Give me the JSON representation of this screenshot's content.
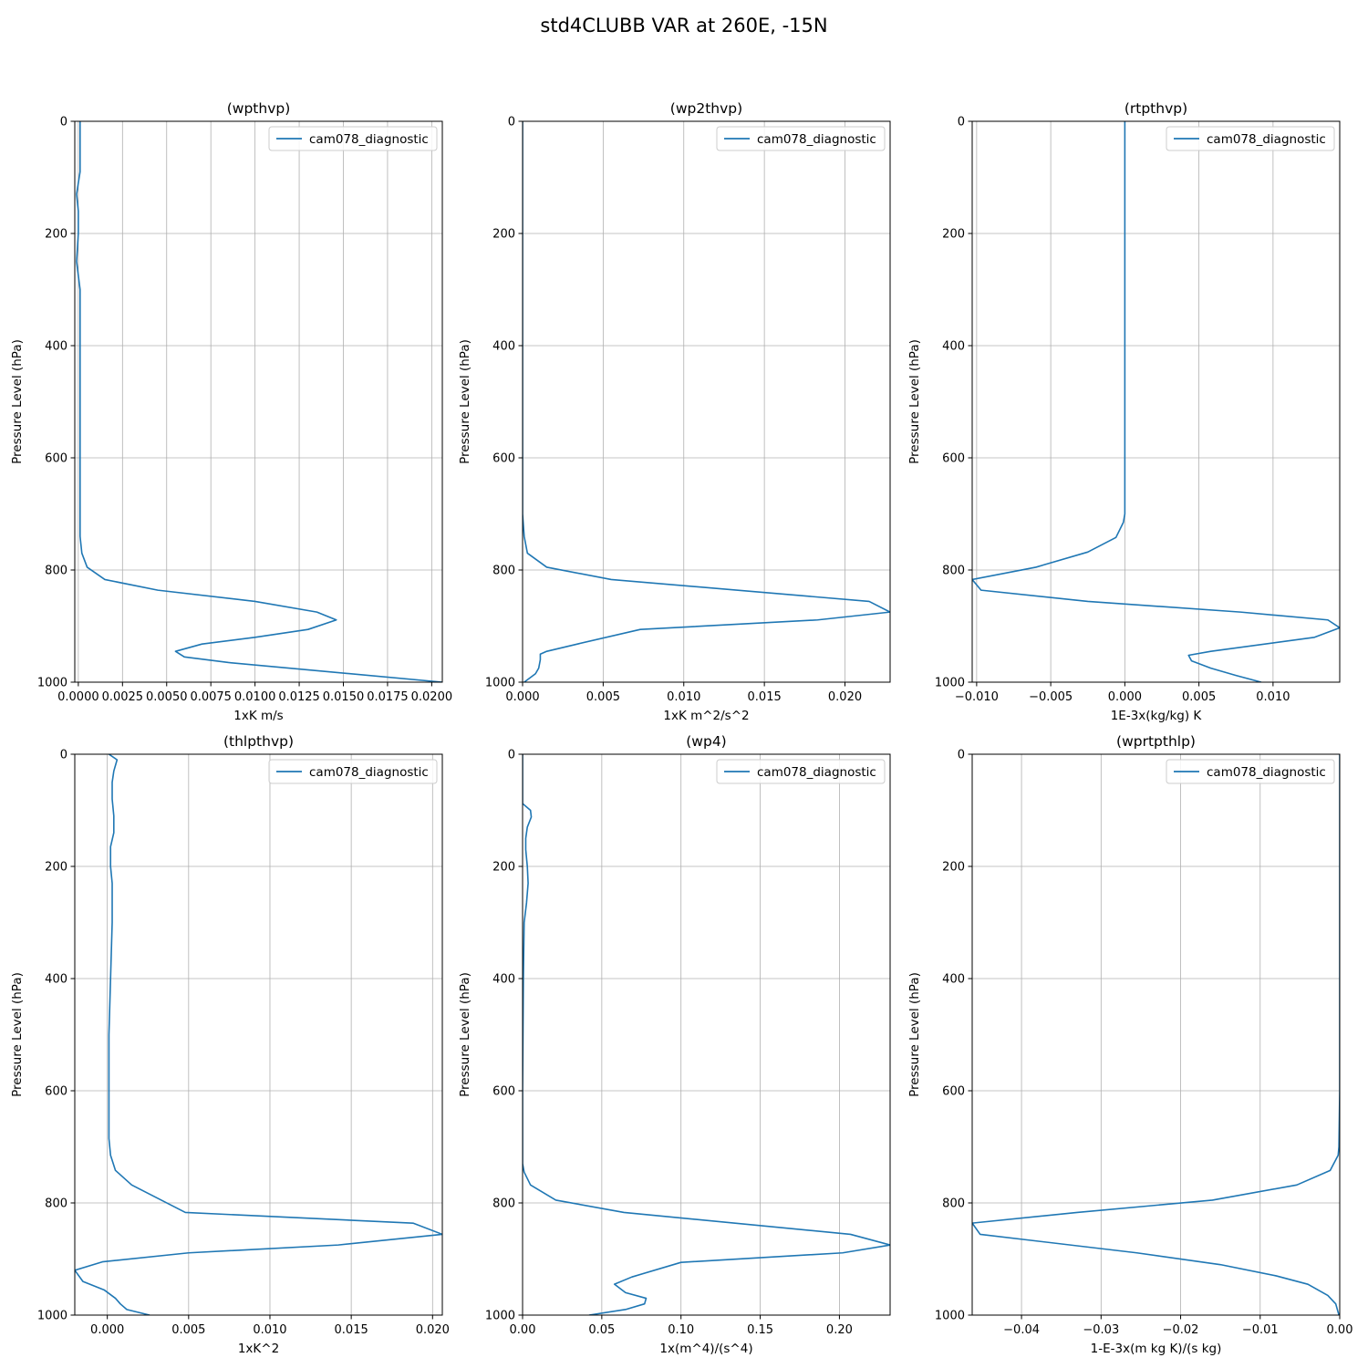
{
  "figure": {
    "title": "std4CLUBB VAR at 260E, -15N"
  },
  "colors": {
    "series": "#1f77b4",
    "grid": "#b0b0b0",
    "axis": "#000000"
  },
  "chart_data": [
    {
      "type": "line",
      "title": "(wpthvp)",
      "xlabel": "1xK m/s",
      "ylabel": "Pressure Level (hPa)",
      "xlim": [
        -0.0002,
        0.0206
      ],
      "ylim": [
        1000,
        0
      ],
      "xticks": [
        0,
        0.0025,
        0.005,
        0.0075,
        0.01,
        0.0125,
        0.015,
        0.0175,
        0.02
      ],
      "xtick_labels": [
        "0.0000",
        "0.0025",
        "0.0050",
        "0.0075",
        "0.0100",
        "0.0125",
        "0.0150",
        "0.0175",
        "0.0200"
      ],
      "yticks": [
        0,
        200,
        400,
        600,
        800,
        1000
      ],
      "ytick_labels": [
        "0",
        "200",
        "400",
        "600",
        "800",
        "1000"
      ],
      "legend": "top-right",
      "series": [
        {
          "name": "cam078_diagnostic",
          "x": [
            0.0001,
            0.0001,
            0.0001,
            -0.0001,
            0.0,
            0.0,
            -0.0001,
            0.0001,
            0.0001,
            0.0001,
            0.0001,
            0.0001,
            0.0001,
            0.0002,
            0.0005,
            0.0015,
            0.0045,
            0.01,
            0.0135,
            0.0146,
            0.013,
            0.01,
            0.007,
            0.0055,
            0.006,
            0.0085,
            0.0206
          ],
          "y": [
            0,
            50,
            90,
            130,
            160,
            200,
            250,
            300,
            400,
            500,
            600,
            700,
            740,
            770,
            795,
            817,
            836,
            856,
            875,
            889,
            906,
            920,
            932,
            945,
            955,
            965,
            1000
          ]
        }
      ]
    },
    {
      "type": "line",
      "title": "(wp2thvp)",
      "xlabel": "1xK m^2/s^2",
      "ylabel": "Pressure Level (hPa)",
      "xlim": [
        0,
        0.0228
      ],
      "ylim": [
        1000,
        0
      ],
      "xticks": [
        0,
        0.005,
        0.01,
        0.015,
        0.02
      ],
      "xtick_labels": [
        "0.000",
        "0.005",
        "0.010",
        "0.015",
        "0.020"
      ],
      "yticks": [
        0,
        200,
        400,
        600,
        800,
        1000
      ],
      "ytick_labels": [
        "0",
        "200",
        "400",
        "600",
        "800",
        "1000"
      ],
      "legend": "top-right",
      "series": [
        {
          "name": "cam078_diagnostic",
          "x": [
            0.0,
            0.0,
            0.0,
            0.0,
            0.0,
            0.0001,
            0.0003,
            0.0015,
            0.0055,
            0.0215,
            0.0228,
            0.0183,
            0.0073,
            0.0034,
            0.0015,
            0.0011,
            0.0011,
            0.001,
            0.0008,
            0.0001
          ],
          "y": [
            0,
            200,
            400,
            600,
            700,
            740,
            770,
            795,
            817,
            856,
            875,
            889,
            906,
            932,
            945,
            950,
            960,
            975,
            985,
            1000
          ]
        }
      ]
    },
    {
      "type": "line",
      "title": "(rtpthvp)",
      "xlabel": "1E-3x(kg/kg) K",
      "ylabel": "Pressure Level (hPa)",
      "xlim": [
        -0.0103,
        0.0145
      ],
      "ylim": [
        1000,
        0
      ],
      "xticks": [
        -0.01,
        -0.005,
        0.0,
        0.005,
        0.01
      ],
      "xtick_labels": [
        "−0.010",
        "−0.005",
        "0.000",
        "0.005",
        "0.010"
      ],
      "yticks": [
        0,
        200,
        400,
        600,
        800,
        1000
      ],
      "ytick_labels": [
        "0",
        "200",
        "400",
        "600",
        "800",
        "1000"
      ],
      "legend": "top-right",
      "series": [
        {
          "name": "cam078_diagnostic",
          "x": [
            0.0,
            0.0,
            0.0,
            0.0,
            0.0,
            0.0,
            -0.0001,
            -0.0006,
            -0.0025,
            -0.006,
            -0.0103,
            -0.0097,
            -0.0025,
            0.0078,
            0.0137,
            0.0145,
            0.0128,
            0.0058,
            0.0043,
            0.0045,
            0.0058,
            0.0075,
            0.0092
          ],
          "y": [
            0,
            200,
            400,
            600,
            680,
            700,
            715,
            742,
            768,
            795,
            817,
            836,
            856,
            875,
            889,
            903,
            920,
            945,
            952,
            962,
            975,
            988,
            1000
          ]
        }
      ]
    },
    {
      "type": "line",
      "title": "(thlpthvp)",
      "xlabel": "1xK^2",
      "ylabel": "Pressure Level (hPa)",
      "xlim": [
        -0.002,
        0.0206
      ],
      "ylim": [
        1000,
        0
      ],
      "xticks": [
        0.0,
        0.005,
        0.01,
        0.015,
        0.02
      ],
      "xtick_labels": [
        "0.000",
        "0.005",
        "0.010",
        "0.015",
        "0.020"
      ],
      "yticks": [
        0,
        200,
        400,
        600,
        800,
        1000
      ],
      "ytick_labels": [
        "0",
        "200",
        "400",
        "600",
        "800",
        "1000"
      ],
      "legend": "top-right",
      "series": [
        {
          "name": "cam078_diagnostic",
          "x": [
            0.0001,
            0.0006,
            0.0004,
            0.0003,
            0.0003,
            0.0004,
            0.0004,
            0.0002,
            0.0002,
            0.0003,
            0.0003,
            0.0002,
            0.0001,
            0.0001,
            0.0001,
            0.0001,
            0.0002,
            0.0005,
            0.0015,
            0.0048,
            0.0188,
            0.0206,
            0.0142,
            0.005,
            -0.0003,
            -0.002,
            -0.0015,
            -0.0002,
            0.0005,
            0.0008,
            0.0012,
            0.0026
          ],
          "y": [
            0,
            10,
            30,
            50,
            80,
            110,
            140,
            165,
            200,
            230,
            300,
            400,
            500,
            600,
            660,
            685,
            715,
            742,
            768,
            817,
            836,
            856,
            875,
            889,
            905,
            920,
            940,
            955,
            970,
            980,
            990,
            1000
          ]
        }
      ]
    },
    {
      "type": "line",
      "title": "(wp4)",
      "xlabel": "1x(m^4)/(s^4)",
      "ylabel": "Pressure Level (hPa)",
      "xlim": [
        0,
        0.232
      ],
      "ylim": [
        1000,
        0
      ],
      "xticks": [
        0.0,
        0.05,
        0.1,
        0.15,
        0.2
      ],
      "xtick_labels": [
        "0.00",
        "0.05",
        "0.10",
        "0.15",
        "0.20"
      ],
      "yticks": [
        0,
        200,
        400,
        600,
        800,
        1000
      ],
      "ytick_labels": [
        "0",
        "200",
        "400",
        "600",
        "800",
        "1000"
      ],
      "legend": "top-right",
      "series": [
        {
          "name": "cam078_diagnostic",
          "x": [
            0.0,
            0.0,
            0.0,
            0.005,
            0.0055,
            0.003,
            0.002,
            0.002,
            0.003,
            0.0035,
            0.0025,
            0.001,
            0.0005,
            0.0,
            0.0,
            0.001,
            0.005,
            0.021,
            0.064,
            0.207,
            0.232,
            0.202,
            0.1,
            0.069,
            0.058,
            0.065,
            0.078,
            0.077,
            0.065,
            0.042
          ],
          "y": [
            0,
            50,
            88,
            100,
            112,
            130,
            150,
            170,
            200,
            230,
            265,
            300,
            400,
            600,
            730,
            745,
            768,
            795,
            817,
            856,
            875,
            889,
            906,
            932,
            945,
            960,
            970,
            980,
            990,
            1000
          ]
        }
      ]
    },
    {
      "type": "line",
      "title": "(wprtpthlp)",
      "xlabel": "1-E-3x(m kg K)/(s kg)",
      "ylabel": "Pressure Level (hPa)",
      "xlim": [
        -0.0462,
        0.0
      ],
      "ylim": [
        1000,
        0
      ],
      "xticks": [
        -0.04,
        -0.03,
        -0.02,
        -0.01,
        0.0
      ],
      "xtick_labels": [
        "−0.04",
        "−0.03",
        "−0.02",
        "−0.01",
        "0.00"
      ],
      "yticks": [
        0,
        200,
        400,
        600,
        800,
        1000
      ],
      "ytick_labels": [
        "0",
        "200",
        "400",
        "600",
        "800",
        "1000"
      ],
      "legend": "top-right",
      "series": [
        {
          "name": "cam078_diagnostic",
          "x": [
            0.0,
            0.0,
            0.0,
            0.0,
            -0.0001,
            -0.0002,
            -0.0012,
            -0.0054,
            -0.016,
            -0.033,
            -0.0462,
            -0.0452,
            -0.0255,
            -0.015,
            -0.008,
            -0.004,
            -0.0015,
            -0.0005,
            -0.0001
          ],
          "y": [
            0,
            200,
            400,
            600,
            700,
            715,
            742,
            768,
            795,
            817,
            836,
            856,
            889,
            910,
            930,
            945,
            965,
            980,
            1000
          ]
        }
      ]
    }
  ]
}
